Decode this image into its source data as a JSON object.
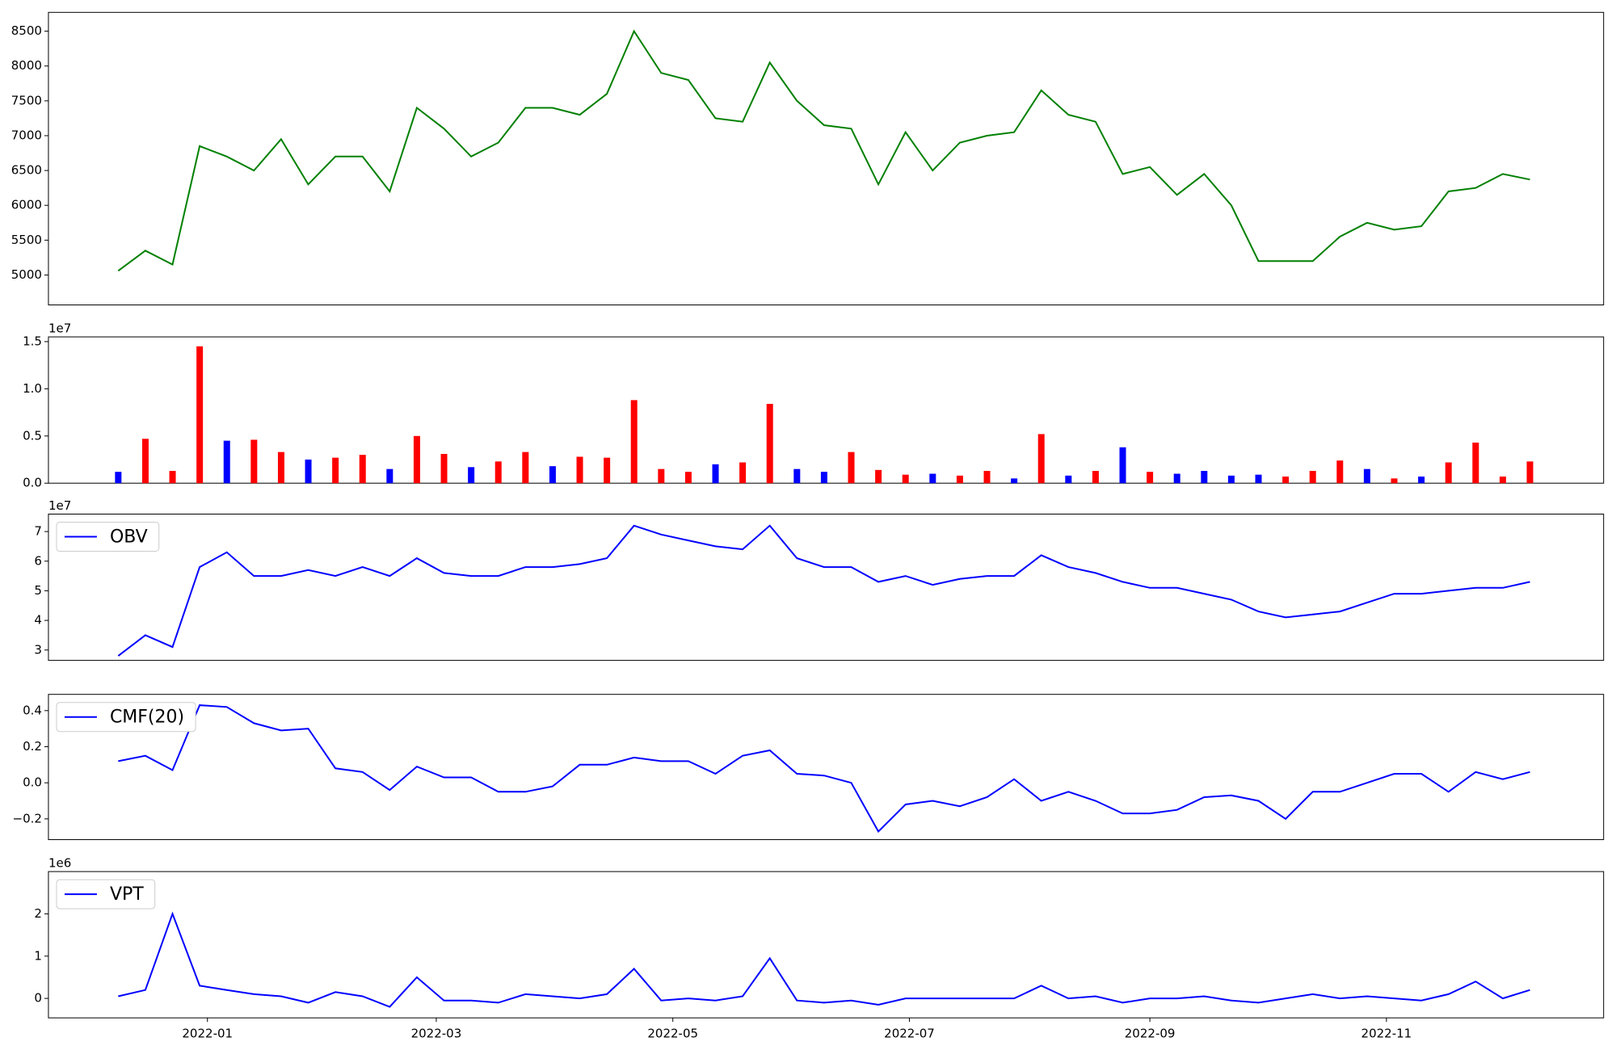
{
  "chart_data": [
    {
      "type": "line",
      "color": "green",
      "x": [
        -23,
        -16,
        -9,
        -2,
        5,
        12,
        19,
        26,
        33,
        40,
        47,
        54,
        61,
        68,
        75,
        82,
        89,
        96,
        103,
        110,
        117,
        124,
        131,
        138,
        145,
        152,
        159,
        166,
        173,
        180,
        187,
        194,
        201,
        208,
        215,
        222,
        229,
        236,
        243,
        250,
        257,
        264,
        271,
        278,
        285,
        292,
        299,
        306,
        313,
        320,
        327,
        334,
        341
      ],
      "values": [
        5060,
        5350,
        5150,
        6850,
        6700,
        6500,
        6950,
        6300,
        6700,
        6700,
        6200,
        7400,
        7100,
        6700,
        6900,
        7400,
        7400,
        7300,
        7600,
        8500,
        7900,
        7800,
        7250,
        7200,
        8050,
        7500,
        7150,
        7100,
        6300,
        7050,
        6500,
        6900,
        7000,
        7050,
        7650,
        7300,
        7200,
        6450,
        6550,
        6150,
        6450,
        6000,
        5200,
        5200,
        5200,
        5550,
        5750,
        5650,
        5700,
        6200,
        6250,
        6450,
        6370
      ],
      "xlim": [
        -41,
        360
      ],
      "ylim": [
        4570,
        8770
      ],
      "yticks": [
        5000,
        5500,
        6000,
        6500,
        7000,
        7500,
        8000,
        8500
      ]
    },
    {
      "type": "bar",
      "offset_label": "1e7",
      "x": [
        -23,
        -16,
        -9,
        -2,
        5,
        12,
        19,
        26,
        33,
        40,
        47,
        54,
        61,
        68,
        75,
        82,
        89,
        96,
        103,
        110,
        117,
        124,
        131,
        138,
        145,
        152,
        159,
        166,
        173,
        180,
        187,
        194,
        201,
        208,
        215,
        222,
        229,
        236,
        243,
        250,
        257,
        264,
        271,
        278,
        285,
        292,
        299,
        306,
        313,
        320,
        327,
        334,
        341
      ],
      "values": [
        0.12,
        0.47,
        0.13,
        1.45,
        0.45,
        0.46,
        0.33,
        0.25,
        0.27,
        0.3,
        0.15,
        0.5,
        0.31,
        0.17,
        0.23,
        0.33,
        0.18,
        0.28,
        0.27,
        0.88,
        0.15,
        0.12,
        0.2,
        0.22,
        0.84,
        0.15,
        0.12,
        0.33,
        0.14,
        0.09,
        0.1,
        0.08,
        0.13,
        0.05,
        0.52,
        0.08,
        0.13,
        0.38,
        0.12,
        0.1,
        0.13,
        0.08,
        0.09,
        0.07,
        0.13,
        0.24,
        0.15,
        0.05,
        0.07,
        0.22,
        0.43,
        0.07,
        0.23
      ],
      "colors": [
        "blue",
        "red",
        "red",
        "red",
        "blue",
        "red",
        "red",
        "blue",
        "red",
        "red",
        "blue",
        "red",
        "red",
        "blue",
        "red",
        "red",
        "blue",
        "red",
        "red",
        "red",
        "red",
        "red",
        "blue",
        "red",
        "red",
        "blue",
        "blue",
        "red",
        "red",
        "red",
        "blue",
        "red",
        "red",
        "blue",
        "red",
        "blue",
        "red",
        "blue",
        "red",
        "blue",
        "blue",
        "blue",
        "blue",
        "red",
        "red",
        "red",
        "blue",
        "red",
        "blue",
        "red",
        "red",
        "red",
        "red"
      ],
      "xlim": [
        -41,
        360
      ],
      "ylim": [
        0,
        1.55
      ],
      "yticks": [
        {
          "value": 0,
          "label": "0.0"
        },
        0.5,
        {
          "value": 1,
          "label": "1.0"
        },
        1.5
      ]
    },
    {
      "type": "line",
      "offset_label": "1e7",
      "legend": "upper left",
      "x": [
        -23,
        -16,
        -9,
        -2,
        5,
        12,
        19,
        26,
        33,
        40,
        47,
        54,
        61,
        68,
        75,
        82,
        89,
        96,
        103,
        110,
        117,
        124,
        131,
        138,
        145,
        152,
        159,
        166,
        173,
        180,
        187,
        194,
        201,
        208,
        215,
        222,
        229,
        236,
        243,
        250,
        257,
        264,
        271,
        278,
        285,
        292,
        299,
        306,
        313,
        320,
        327,
        334,
        341
      ],
      "series": [
        {
          "name": "OBV",
          "color": "blue",
          "values": [
            2.8,
            3.5,
            3.1,
            5.8,
            6.3,
            5.5,
            5.5,
            5.7,
            5.5,
            5.8,
            5.5,
            6.1,
            5.6,
            5.5,
            5.5,
            5.8,
            5.8,
            5.9,
            6.1,
            7.2,
            6.9,
            6.7,
            6.5,
            6.4,
            7.2,
            6.1,
            5.8,
            5.8,
            5.3,
            5.5,
            5.2,
            5.4,
            5.5,
            5.5,
            6.2,
            5.8,
            5.6,
            5.3,
            5.1,
            5.1,
            4.9,
            4.7,
            4.3,
            4.1,
            4.2,
            4.3,
            4.6,
            4.9,
            4.9,
            5.0,
            5.1,
            5.1,
            5.3
          ]
        }
      ],
      "xlim": [
        -41,
        360
      ],
      "ylim": [
        2.65,
        7.59
      ],
      "yticks": [
        3,
        4,
        5,
        6,
        7
      ]
    },
    {
      "type": "line",
      "legend": "upper left",
      "x": [
        -23,
        -16,
        -9,
        -2,
        5,
        12,
        19,
        26,
        33,
        40,
        47,
        54,
        61,
        68,
        75,
        82,
        89,
        96,
        103,
        110,
        117,
        124,
        131,
        138,
        145,
        152,
        159,
        166,
        173,
        180,
        187,
        194,
        201,
        208,
        215,
        222,
        229,
        236,
        243,
        250,
        257,
        264,
        271,
        278,
        285,
        292,
        299,
        306,
        313,
        320,
        327,
        334,
        341
      ],
      "series": [
        {
          "name": "CMF(20)",
          "color": "blue",
          "values": [
            0.12,
            0.15,
            0.07,
            0.43,
            0.42,
            0.33,
            0.29,
            0.3,
            0.08,
            0.06,
            -0.04,
            0.09,
            0.03,
            0.03,
            -0.05,
            -0.05,
            -0.02,
            0.1,
            0.1,
            0.14,
            0.12,
            0.12,
            0.05,
            0.15,
            0.18,
            0.05,
            0.04,
            0.0,
            -0.27,
            -0.12,
            -0.1,
            -0.13,
            -0.08,
            0.02,
            -0.1,
            -0.05,
            -0.1,
            -0.17,
            -0.17,
            -0.15,
            -0.08,
            -0.07,
            -0.1,
            -0.2,
            -0.05,
            -0.05,
            0.0,
            0.05,
            0.05,
            -0.05,
            0.06,
            0.02,
            0.06
          ]
        }
      ],
      "xlim": [
        -41,
        360
      ],
      "ylim": [
        -0.315,
        0.49
      ],
      "yticks": [
        {
          "value": -0.2,
          "label": "−0.2"
        },
        {
          "value": 0,
          "label": "0.0"
        },
        0.2,
        0.4
      ]
    },
    {
      "type": "line",
      "offset_label": "1e6",
      "legend": "upper left",
      "x": [
        -23,
        -16,
        -9,
        -2,
        5,
        12,
        19,
        26,
        33,
        40,
        47,
        54,
        61,
        68,
        75,
        82,
        89,
        96,
        103,
        110,
        117,
        124,
        131,
        138,
        145,
        152,
        159,
        166,
        173,
        180,
        187,
        194,
        201,
        208,
        215,
        222,
        229,
        236,
        243,
        250,
        257,
        264,
        271,
        278,
        285,
        292,
        299,
        306,
        313,
        320,
        327,
        334,
        341
      ],
      "series": [
        {
          "name": "VPT",
          "color": "blue",
          "values": [
            0.05,
            0.2,
            2.0,
            0.3,
            0.2,
            0.1,
            0.05,
            -0.1,
            0.15,
            0.05,
            -0.2,
            0.5,
            -0.05,
            -0.05,
            -0.1,
            0.1,
            0.05,
            0.0,
            0.1,
            0.7,
            -0.05,
            0.0,
            -0.05,
            0.05,
            0.95,
            -0.05,
            -0.1,
            -0.05,
            -0.15,
            0.0,
            0.0,
            0.0,
            0.0,
            0.0,
            0.3,
            0.0,
            0.05,
            -0.1,
            0.0,
            0.0,
            0.05,
            -0.05,
            -0.1,
            0.0,
            0.1,
            0.0,
            0.05,
            0.0,
            -0.05,
            0.1,
            0.4,
            0.0,
            0.2
          ]
        }
      ],
      "xlim": [
        -41,
        360
      ],
      "ylim": [
        -0.46,
        3.0
      ],
      "yticks": [
        0,
        1,
        2
      ],
      "xticks": [
        {
          "value": 0,
          "label": "2022-01"
        },
        {
          "value": 59,
          "label": "2022-03"
        },
        {
          "value": 120,
          "label": "2022-05"
        },
        {
          "value": 181,
          "label": "2022-07"
        },
        {
          "value": 243,
          "label": "2022-09"
        },
        {
          "value": 304,
          "label": "2022-11"
        }
      ]
    }
  ]
}
